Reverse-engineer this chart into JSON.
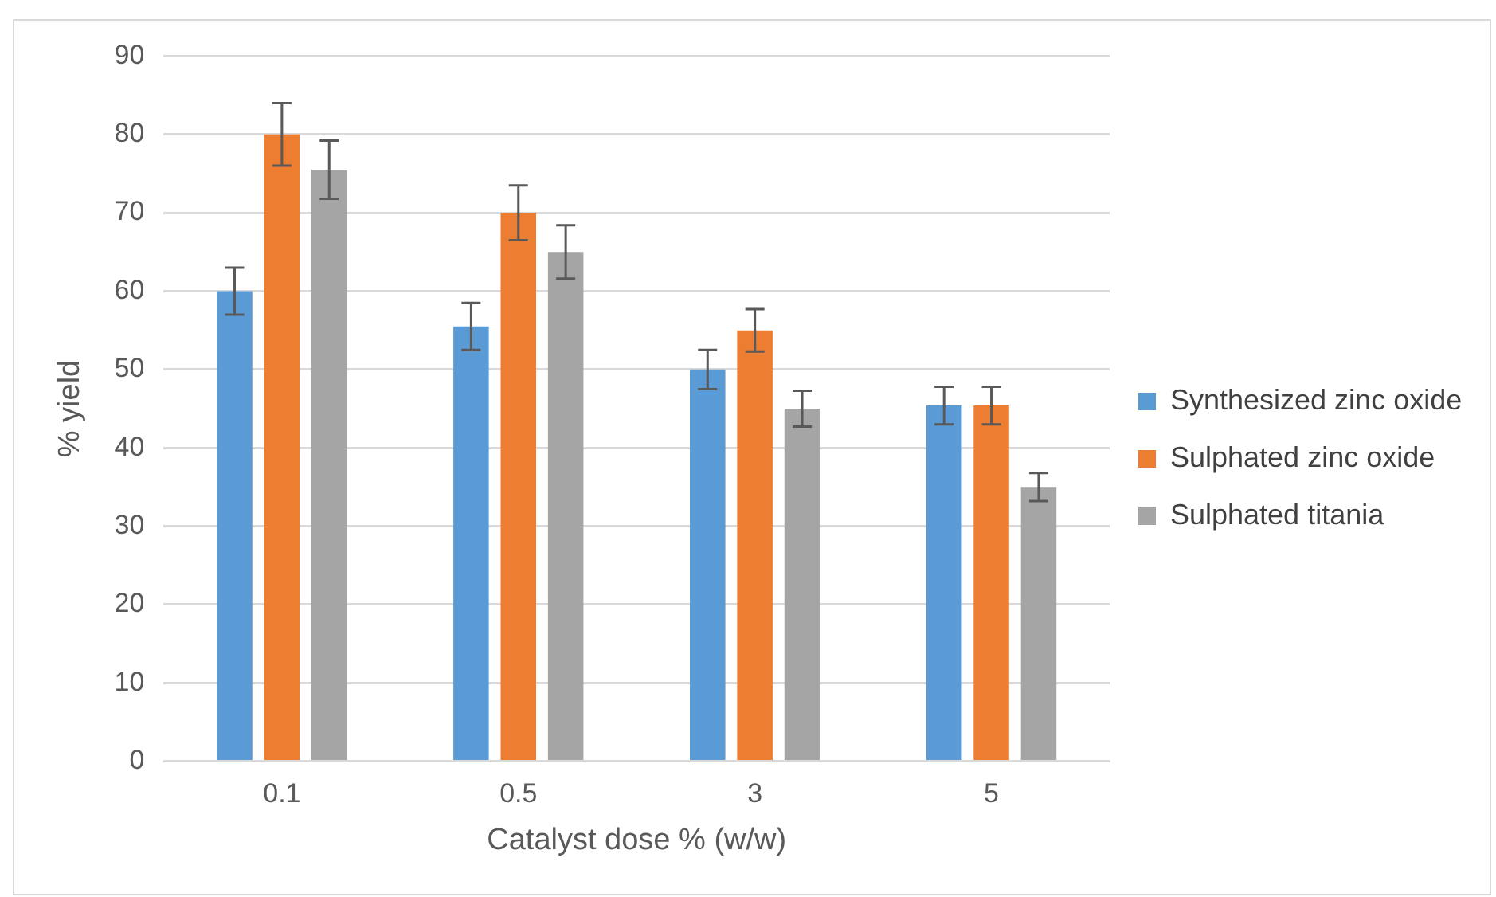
{
  "chart_data": {
    "type": "bar",
    "xlabel": "Catalyst dose % (w/w)",
    "ylabel": "% yield",
    "categories": [
      "0.1",
      "0.5",
      "3",
      "5"
    ],
    "series": [
      {
        "name": "Synthesized zinc oxide",
        "color": "#5b9bd5",
        "values": [
          60,
          55.5,
          50,
          45.4
        ],
        "errors": [
          3,
          3,
          2.5,
          2.4
        ]
      },
      {
        "name": "Sulphated zinc oxide",
        "color": "#ed7d31",
        "values": [
          80,
          70,
          55,
          45.4
        ],
        "errors": [
          4,
          3.5,
          2.7,
          2.4
        ]
      },
      {
        "name": "Sulphated titania",
        "color": "#a5a5a5",
        "values": [
          75.5,
          65,
          45,
          35
        ],
        "errors": [
          3.7,
          3.4,
          2.3,
          1.8
        ]
      }
    ],
    "ylim": [
      0,
      90
    ],
    "yticks": [
      0,
      10,
      20,
      30,
      40,
      50,
      60,
      70,
      80,
      90
    ],
    "grid": "y",
    "legend": "right"
  }
}
